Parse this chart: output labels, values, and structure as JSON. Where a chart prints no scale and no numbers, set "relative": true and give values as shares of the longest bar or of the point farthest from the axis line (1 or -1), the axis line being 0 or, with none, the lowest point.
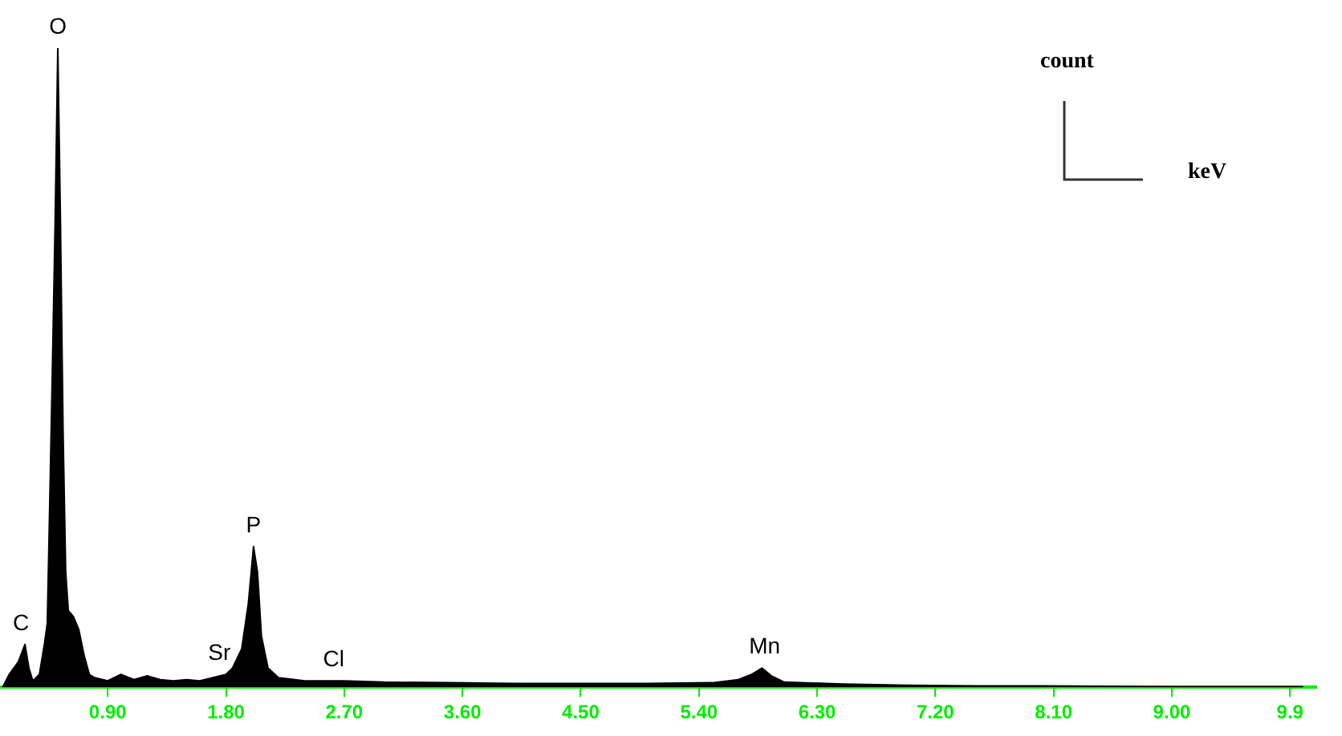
{
  "chart_data": {
    "type": "area",
    "relative": true,
    "xlabel": "keV",
    "ylabel": "count",
    "xlim": [
      0.08,
      10.1
    ],
    "xticks": [
      {
        "value": 0.9,
        "label": "0.90"
      },
      {
        "value": 1.8,
        "label": "1.80"
      },
      {
        "value": 2.7,
        "label": "2.70"
      },
      {
        "value": 3.6,
        "label": "3.60"
      },
      {
        "value": 4.5,
        "label": "4.50"
      },
      {
        "value": 5.4,
        "label": "5.40"
      },
      {
        "value": 6.3,
        "label": "6.30"
      },
      {
        "value": 7.2,
        "label": "7.20"
      },
      {
        "value": 8.1,
        "label": "8.10"
      },
      {
        "value": 9.0,
        "label": "9.00"
      },
      9.9
    ],
    "grid": false,
    "legend": false,
    "marker": "none",
    "series": [
      {
        "color": "#000000",
        "x": [
          0.1,
          0.15,
          0.22,
          0.27,
          0.3,
          0.33,
          0.38,
          0.42,
          0.44,
          0.46,
          0.48,
          0.5,
          0.52,
          0.54,
          0.56,
          0.58,
          0.6,
          0.64,
          0.68,
          0.72,
          0.76,
          0.8,
          0.9,
          1.0,
          1.1,
          1.2,
          1.3,
          1.4,
          1.5,
          1.6,
          1.7,
          1.8,
          1.85,
          1.92,
          1.97,
          2.01,
          2.04,
          2.07,
          2.12,
          2.2,
          2.4,
          2.7,
          3.0,
          3.5,
          4.0,
          4.5,
          5.0,
          5.5,
          5.7,
          5.8,
          5.88,
          5.95,
          6.05,
          6.5,
          7.0,
          7.5,
          8.0,
          9.0,
          10.0
        ],
        "values": [
          0.0,
          0.02,
          0.04,
          0.067,
          0.03,
          0.01,
          0.02,
          0.07,
          0.1,
          0.3,
          0.51,
          0.73,
          1.0,
          0.73,
          0.4,
          0.18,
          0.12,
          0.11,
          0.09,
          0.05,
          0.02,
          0.015,
          0.01,
          0.02,
          0.012,
          0.018,
          0.012,
          0.01,
          0.012,
          0.01,
          0.015,
          0.02,
          0.03,
          0.06,
          0.13,
          0.22,
          0.18,
          0.08,
          0.03,
          0.015,
          0.01,
          0.01,
          0.008,
          0.007,
          0.006,
          0.006,
          0.006,
          0.007,
          0.012,
          0.02,
          0.03,
          0.018,
          0.008,
          0.005,
          0.003,
          0.002,
          0.002,
          0.001,
          0.001
        ]
      }
    ],
    "annotations": [
      {
        "text": "O",
        "x": 0.52,
        "y": 1.0
      },
      {
        "text": "C",
        "x": 0.24,
        "y": 0.067
      },
      {
        "text": "P",
        "x": 2.01,
        "y": 0.22
      },
      {
        "text": "Sr",
        "x": 1.75,
        "y": 0.02
      },
      {
        "text": "Cl",
        "x": 2.62,
        "y": 0.01
      },
      {
        "text": "Mn",
        "x": 5.9,
        "y": 0.03
      }
    ]
  }
}
